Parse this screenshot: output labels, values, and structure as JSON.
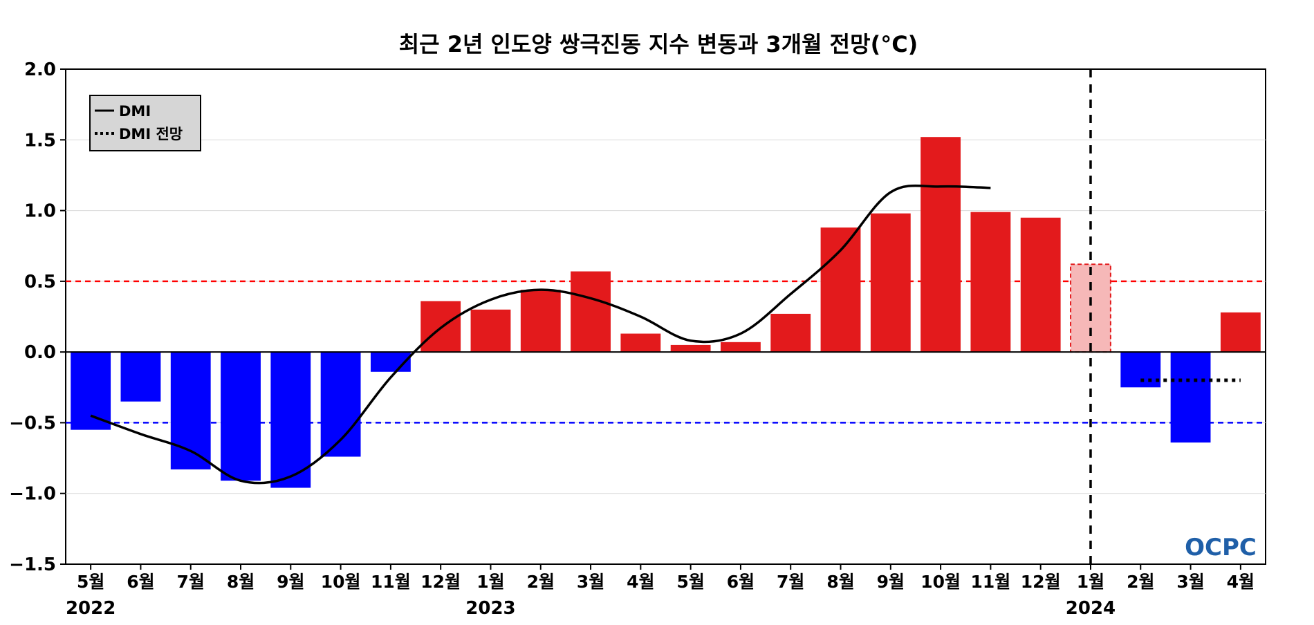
{
  "chart_data": {
    "type": "bar",
    "title": "최근 2년 인도양 쌍극진동 지수 변동과 3개월 전망(°C)",
    "xlabel": "",
    "ylabel": "",
    "ylim": [
      -1.5,
      2.0
    ],
    "yticks": [
      "2.0",
      "1.5",
      "1.0",
      "0.5",
      "0.0",
      "−0.5",
      "−1.0",
      "−1.5"
    ],
    "ytick_values": [
      2.0,
      1.5,
      1.0,
      0.5,
      0.0,
      -0.5,
      -1.0,
      -1.5
    ],
    "categories": [
      "5월",
      "6월",
      "7월",
      "8월",
      "9월",
      "10월",
      "11월",
      "12월",
      "1월",
      "2월",
      "3월",
      "4월",
      "5월",
      "6월",
      "7월",
      "8월",
      "9월",
      "10월",
      "11월",
      "12월",
      "1월",
      "2월",
      "3월",
      "4월"
    ],
    "year_labels": [
      {
        "label": "2022",
        "category_index": 0
      },
      {
        "label": "2023",
        "category_index": 8
      },
      {
        "label": "2024",
        "category_index": 20
      }
    ],
    "bars": [
      -0.55,
      -0.35,
      -0.83,
      -0.91,
      -0.96,
      -0.74,
      -0.14,
      0.36,
      0.3,
      0.44,
      0.57,
      0.13,
      0.05,
      0.07,
      0.27,
      0.88,
      0.98,
      1.52,
      0.99,
      0.95,
      0.62,
      -0.25,
      -0.64,
      0.28
    ],
    "bar_colors": {
      "positive": "#e31a1c",
      "negative": "#0000ff",
      "forecast_positive": "#f6b8b8"
    },
    "highlighted_bar_index": 20,
    "series": [
      {
        "name": "DMI",
        "style": "solid",
        "color": "#000000",
        "values": [
          -0.45,
          -0.58,
          -0.7,
          -0.91,
          -0.88,
          -0.62,
          -0.18,
          0.17,
          0.37,
          0.44,
          0.38,
          0.25,
          0.08,
          0.13,
          0.41,
          0.72,
          1.13,
          1.17,
          1.16,
          null,
          null,
          null,
          null,
          null
        ]
      },
      {
        "name": "DMI 전망",
        "style": "dotted",
        "color": "#000000",
        "values": [
          null,
          null,
          null,
          null,
          null,
          null,
          null,
          null,
          null,
          null,
          null,
          null,
          null,
          null,
          null,
          null,
          null,
          null,
          null,
          null,
          null,
          -0.2,
          -0.2,
          -0.2
        ]
      }
    ],
    "reference_lines": [
      {
        "value": 0.5,
        "color": "#ff0000",
        "style": "dashed"
      },
      {
        "value": -0.5,
        "color": "#0000ff",
        "style": "dashed"
      }
    ],
    "forecast_divider_index": 20,
    "grid": true,
    "legend_position": "top-left",
    "watermark": "OCPC"
  }
}
